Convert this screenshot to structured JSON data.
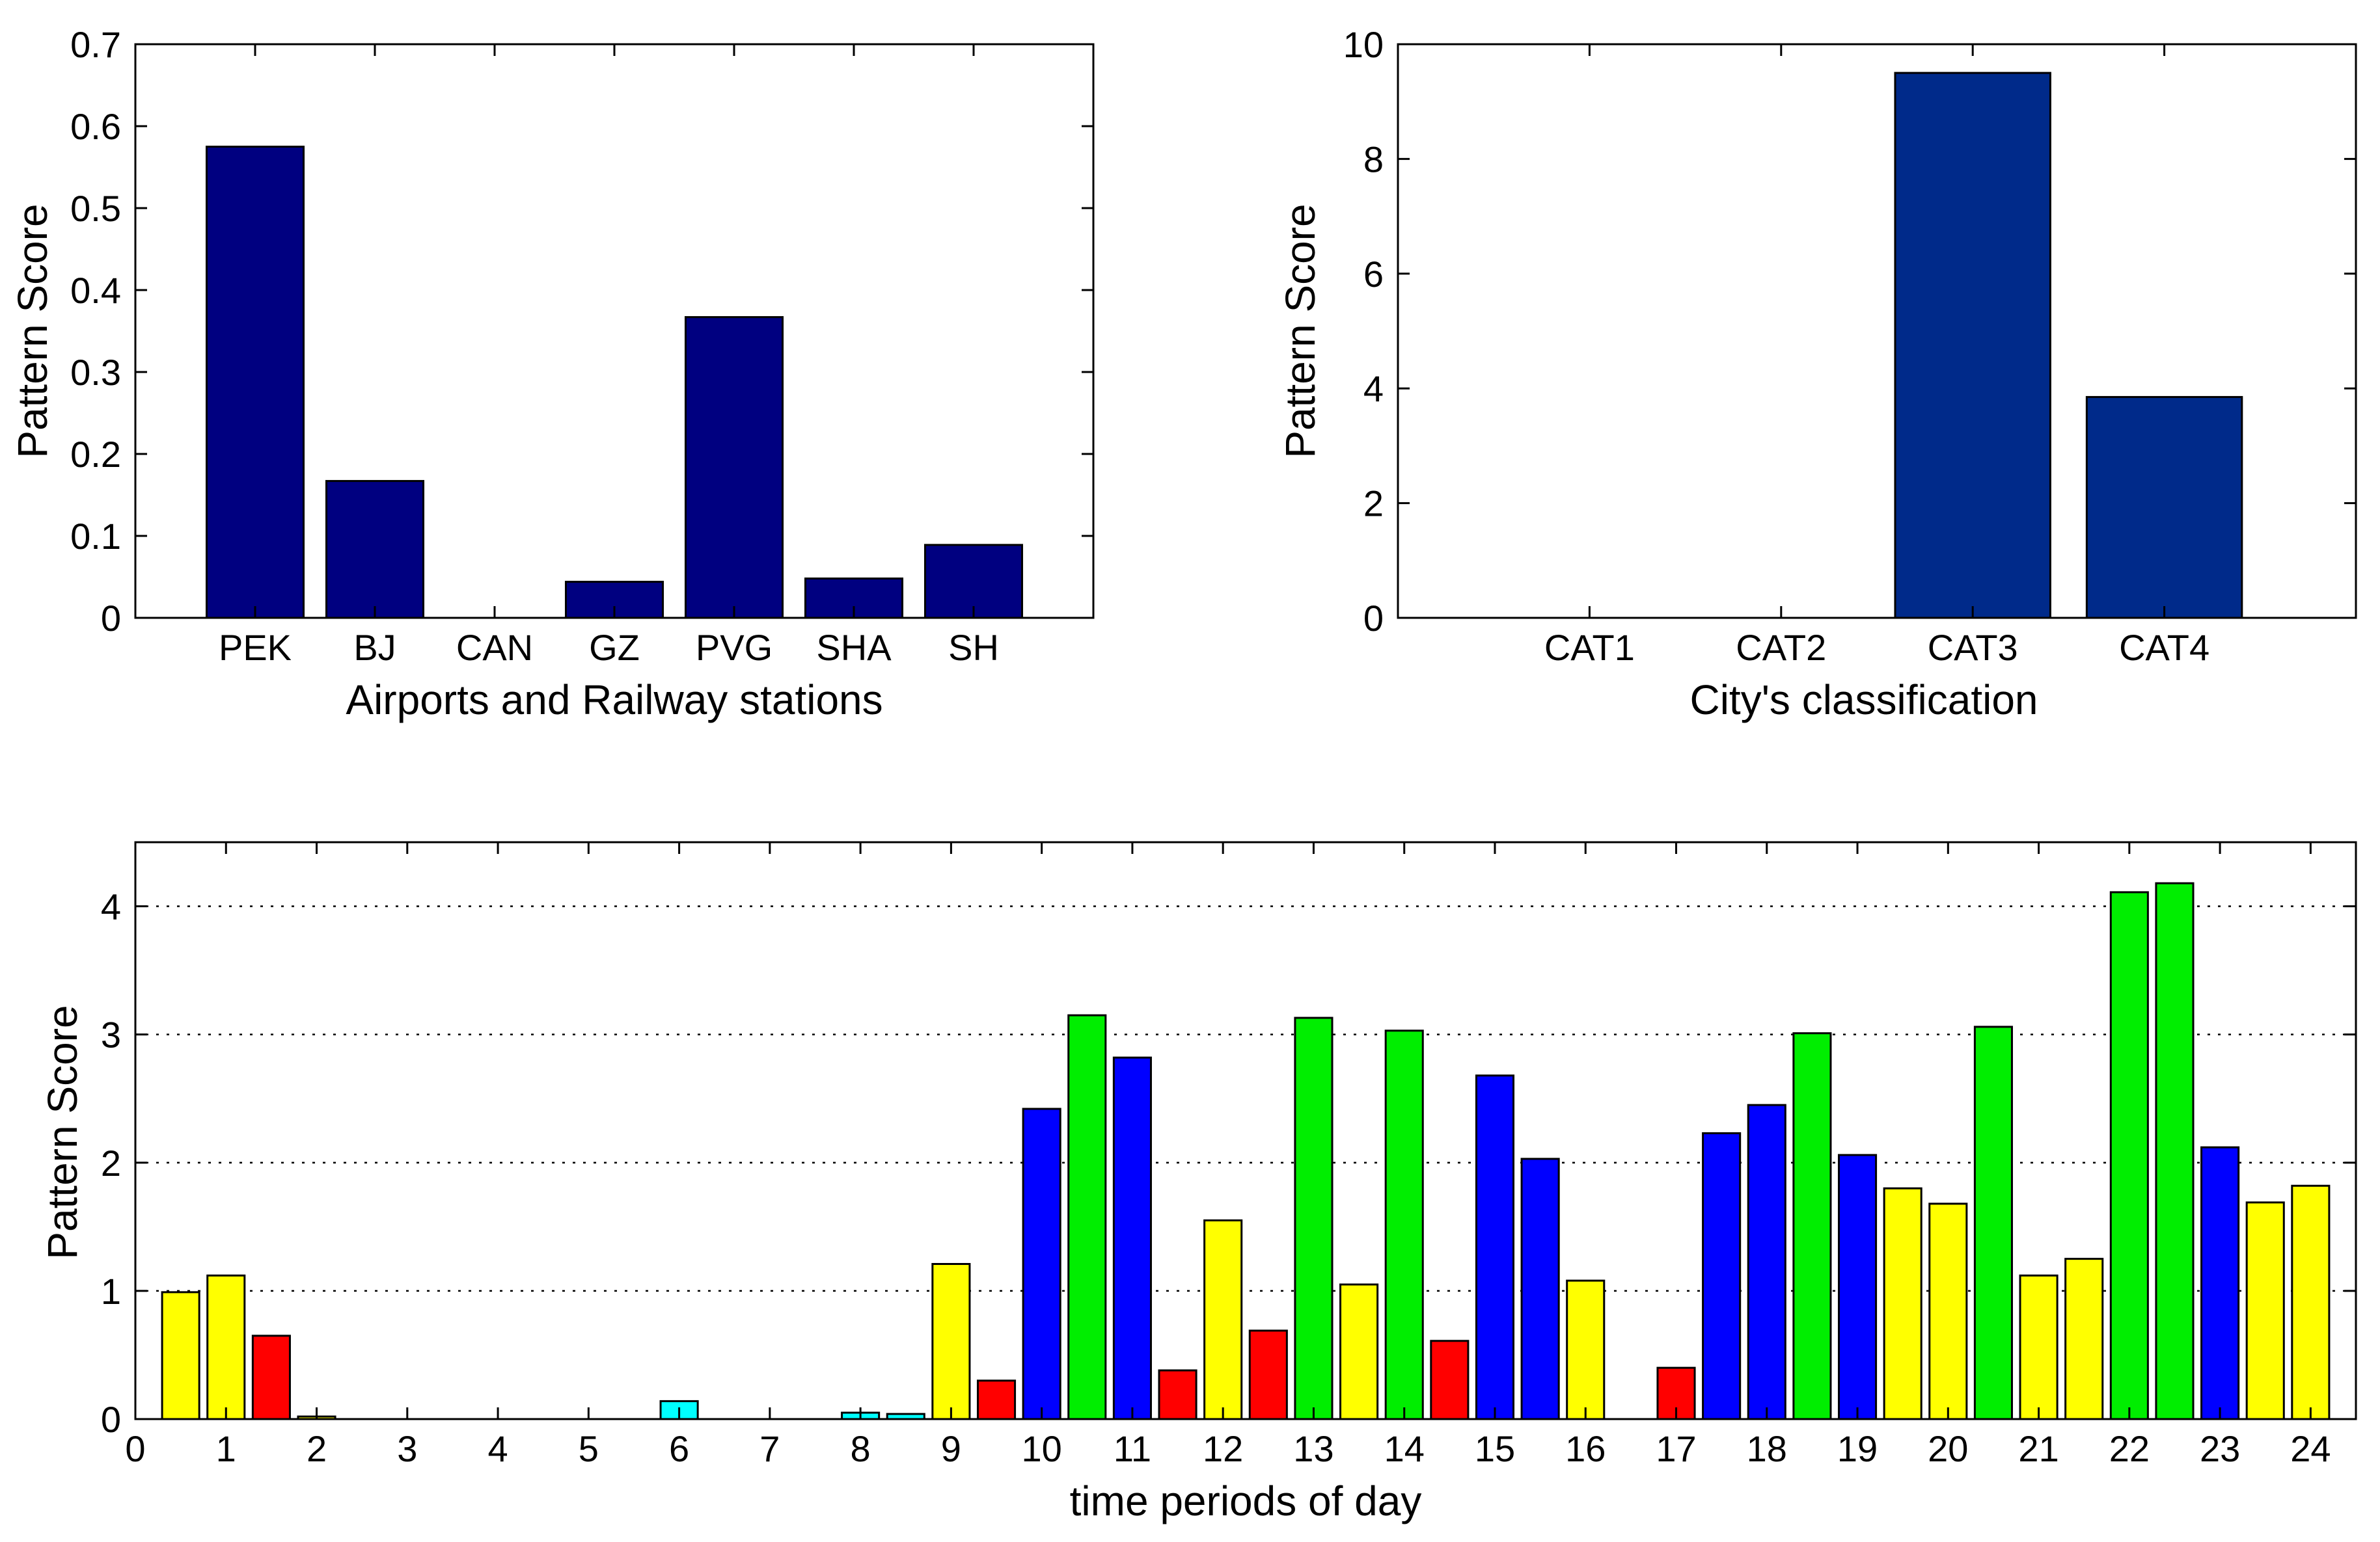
{
  "chart_data": [
    {
      "id": "stations",
      "type": "bar",
      "title": "",
      "xlabel": "Airports and Railway stations",
      "ylabel": "Pattern Score",
      "categories": [
        "PEK",
        "BJ",
        "CAN",
        "GZ",
        "PVG",
        "SHA",
        "SH"
      ],
      "values": [
        0.575,
        0.167,
        0.0,
        0.044,
        0.367,
        0.048,
        0.089
      ],
      "ylim": [
        0,
        0.7
      ],
      "yticks": [
        "0",
        "0.1",
        "0.2",
        "0.3",
        "0.4",
        "0.5",
        "0.6",
        "0.7"
      ],
      "grid": false,
      "bar_color": "#000080"
    },
    {
      "id": "cities",
      "type": "bar",
      "title": "",
      "xlabel": "City's classification",
      "ylabel": "Pattern Score",
      "categories": [
        "CAT1",
        "CAT2",
        "CAT3",
        "CAT4"
      ],
      "values": [
        0,
        0,
        9.5,
        3.85
      ],
      "ylim": [
        0,
        10
      ],
      "yticks": [
        "0",
        "2",
        "4",
        "6",
        "8",
        "10"
      ],
      "grid": false,
      "bar_color": "#002a8a"
    },
    {
      "id": "time",
      "type": "bar",
      "title": "",
      "xlabel": "time periods of day",
      "ylabel": "Pattern Score",
      "xlim": [
        0,
        24.5
      ],
      "xticks": [
        "0",
        "1",
        "2",
        "3",
        "4",
        "5",
        "6",
        "7",
        "8",
        "9",
        "10",
        "11",
        "12",
        "13",
        "14",
        "15",
        "16",
        "17",
        "18",
        "19",
        "20",
        "21",
        "22",
        "23",
        "24"
      ],
      "ylim": [
        0,
        4.5
      ],
      "yticks": [
        "0",
        "1",
        "2",
        "3",
        "4"
      ],
      "grid": "horizontal dotted",
      "colors": {
        "yellow": "#ffff00",
        "red": "#ff0000",
        "blue": "#0000ff",
        "green": "#00ee00",
        "cyan": "#00ffff"
      },
      "bars": [
        {
          "x": 0.5,
          "value": 0.99,
          "color": "yellow"
        },
        {
          "x": 1.0,
          "value": 1.12,
          "color": "yellow"
        },
        {
          "x": 1.5,
          "value": 0.65,
          "color": "red"
        },
        {
          "x": 2.0,
          "value": 0.02,
          "color": "yellow"
        },
        {
          "x": 6.0,
          "value": 0.14,
          "color": "cyan"
        },
        {
          "x": 8.0,
          "value": 0.05,
          "color": "cyan"
        },
        {
          "x": 8.5,
          "value": 0.04,
          "color": "cyan"
        },
        {
          "x": 9.0,
          "value": 1.21,
          "color": "yellow"
        },
        {
          "x": 9.5,
          "value": 0.3,
          "color": "red"
        },
        {
          "x": 10.0,
          "value": 2.42,
          "color": "blue"
        },
        {
          "x": 10.5,
          "value": 3.15,
          "color": "green"
        },
        {
          "x": 11.0,
          "value": 2.82,
          "color": "blue"
        },
        {
          "x": 11.5,
          "value": 0.38,
          "color": "red"
        },
        {
          "x": 12.0,
          "value": 1.55,
          "color": "yellow"
        },
        {
          "x": 12.5,
          "value": 0.69,
          "color": "red"
        },
        {
          "x": 13.0,
          "value": 3.13,
          "color": "green"
        },
        {
          "x": 13.5,
          "value": 1.05,
          "color": "yellow"
        },
        {
          "x": 14.0,
          "value": 3.03,
          "color": "green"
        },
        {
          "x": 14.5,
          "value": 0.61,
          "color": "red"
        },
        {
          "x": 15.0,
          "value": 2.68,
          "color": "blue"
        },
        {
          "x": 15.5,
          "value": 2.03,
          "color": "blue"
        },
        {
          "x": 16.0,
          "value": 1.08,
          "color": "yellow"
        },
        {
          "x": 17.0,
          "value": 0.4,
          "color": "red"
        },
        {
          "x": 17.5,
          "value": 2.23,
          "color": "blue"
        },
        {
          "x": 18.0,
          "value": 2.45,
          "color": "blue"
        },
        {
          "x": 18.5,
          "value": 3.01,
          "color": "green"
        },
        {
          "x": 19.0,
          "value": 2.06,
          "color": "blue"
        },
        {
          "x": 19.5,
          "value": 1.8,
          "color": "yellow"
        },
        {
          "x": 20.0,
          "value": 1.68,
          "color": "yellow"
        },
        {
          "x": 20.5,
          "value": 3.06,
          "color": "green"
        },
        {
          "x": 21.0,
          "value": 1.12,
          "color": "yellow"
        },
        {
          "x": 21.5,
          "value": 1.25,
          "color": "yellow"
        },
        {
          "x": 22.0,
          "value": 4.11,
          "color": "green"
        },
        {
          "x": 22.5,
          "value": 4.18,
          "color": "green"
        },
        {
          "x": 23.0,
          "value": 2.12,
          "color": "blue"
        },
        {
          "x": 23.5,
          "value": 1.69,
          "color": "yellow"
        },
        {
          "x": 24.0,
          "value": 1.82,
          "color": "yellow"
        }
      ]
    }
  ]
}
